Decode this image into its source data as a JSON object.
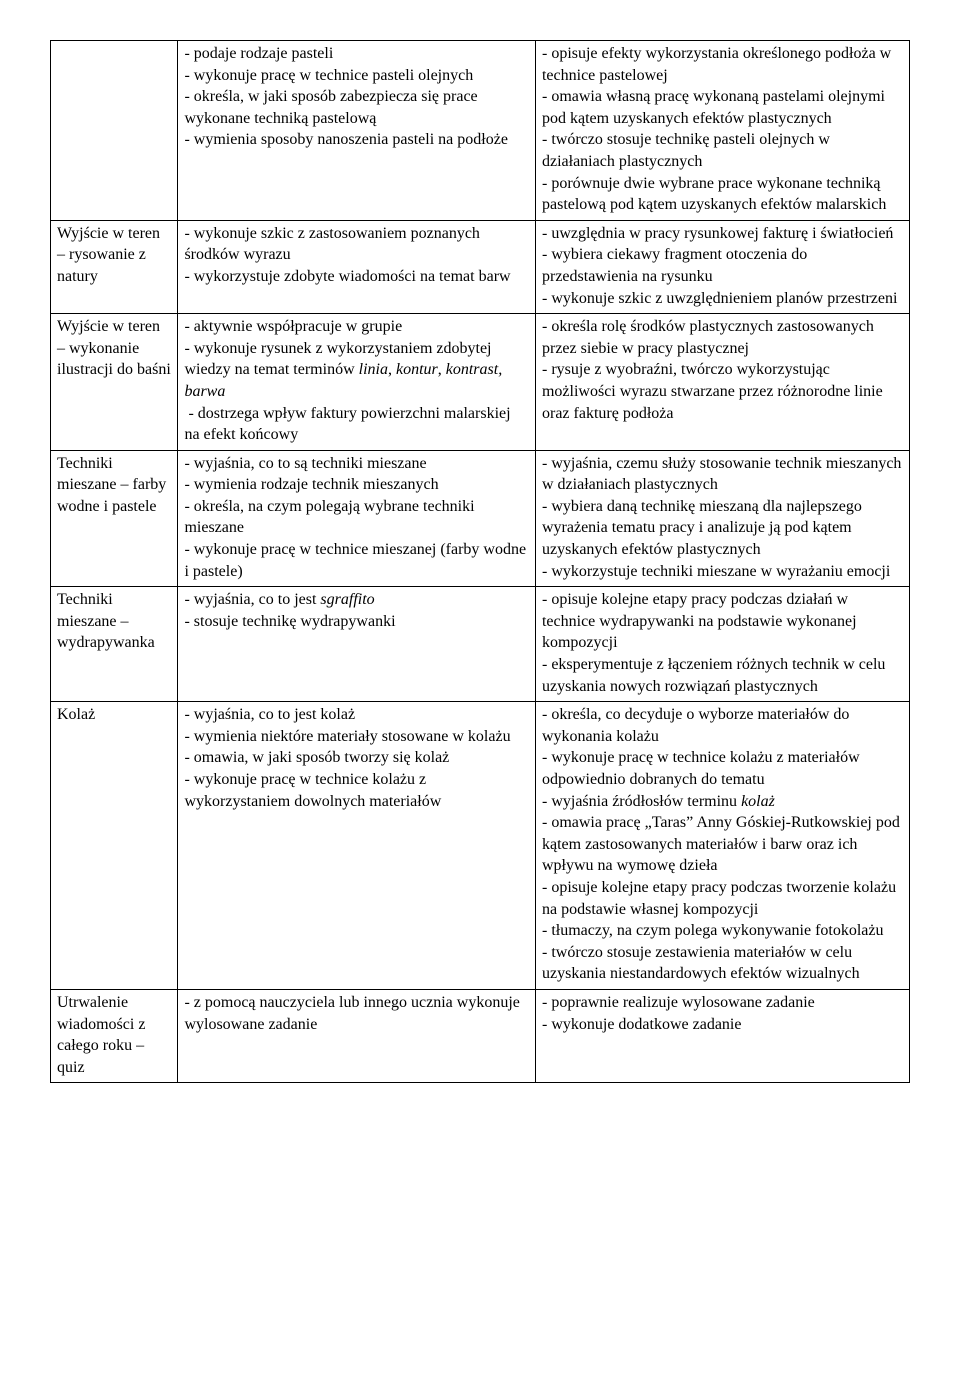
{
  "table": {
    "columns": [
      "topic",
      "basic",
      "extended"
    ],
    "col_widths_pct": [
      14,
      42,
      44
    ],
    "border_color": "#000000",
    "background_color": "#ffffff",
    "font_family": "Times New Roman",
    "font_size_pt": 12,
    "rows": [
      {
        "topic": "",
        "basic": "- podaje rodzaje pasteli\n- wykonuje pracę w technice pasteli olejnych\n- określa, w jaki sposób zabezpiecza się prace wykonane techniką pastelową\n- wymienia sposoby nanoszenia pasteli na podłoże",
        "extended": "- opisuje efekty wykorzystania określonego podłoża w technice pastelowej\n- omawia własną pracę wykonaną pastelami olejnymi pod kątem uzyskanych efektów plastycznych\n- twórczo stosuje technikę pasteli olejnych w działaniach plastycznych\n- porównuje dwie wybrane prace wykonane techniką pastelową pod kątem uzyskanych efektów malarskich"
      },
      {
        "topic": "Wyjście w teren – rysowanie z natury",
        "basic": "- wykonuje szkic z zastosowaniem poznanych środków wyrazu\n- wykorzystuje zdobyte wiadomości na temat barw",
        "extended": "- uwzględnia w pracy rysunkowej fakturę i światłocień\n- wybiera ciekawy fragment otoczenia do przedstawienia na rysunku\n- wykonuje szkic z uwzględnieniem planów przestrzeni"
      },
      {
        "topic": "Wyjście w teren – wykonanie ilustracji do baśni",
        "basic_html": "- aktywnie współpracuje w grupie<br>- wykonuje rysunek z wykorzystaniem zdobytej wiedzy na temat terminów <span class=\"it\">linia</span>, <span class=\"it\">kontur</span>, <span class=\"it\">kontrast, barwa</span><br>&nbsp;- dostrzega wpływ faktury powierzchni malarskiej na efekt końcowy",
        "extended": "- określa rolę środków plastycznych zastosowanych przez siebie w pracy plastycznej\n- rysuje z wyobraźni, twórczo wykorzystując możliwości wyrazu stwarzane przez różnorodne linie oraz fakturę podłoża"
      },
      {
        "topic": "Techniki mieszane – farby wodne i pastele",
        "basic": "- wyjaśnia, co to są techniki mieszane\n- wymienia rodzaje technik mieszanych\n- określa, na czym polegają wybrane techniki mieszane\n- wykonuje pracę w technice mieszanej (farby wodne i pastele)",
        "extended": "- wyjaśnia, czemu służy stosowanie technik mieszanych w działaniach plastycznych\n- wybiera daną technikę mieszaną dla najlepszego wyrażenia tematu pracy i analizuje ją pod kątem uzyskanych efektów plastycznych\n- wykorzystuje techniki mieszane w wyrażaniu emocji"
      },
      {
        "topic": "Techniki mieszane – wydrapywanka",
        "basic_html": "- wyjaśnia, co to jest <span class=\"it\">sgraffito</span><br>- stosuje technikę wydrapywanki",
        "extended": "- opisuje kolejne etapy pracy podczas działań w technice wydrapywanki na podstawie wykonanej kompozycji\n- eksperymentuje z łączeniem różnych technik w celu uzyskania nowych rozwiązań plastycznych\n"
      },
      {
        "topic": "Kolaż",
        "basic": "- wyjaśnia, co to jest kolaż\n- wymienia niektóre materiały stosowane w kolażu\n- omawia, w jaki sposób tworzy się kolaż\n- wykonuje pracę w technice kolażu z wykorzystaniem dowolnych materiałów",
        "extended_html": "- określa, co decyduje o wyborze materiałów do wykonania kolażu<br>- wykonuje pracę w technice kolażu z materiałów odpowiednio dobranych do tematu<br>- wyjaśnia źródłosłów terminu <span class=\"it\">kolaż</span><br>- omawia pracę „Taras” Anny Góskiej-Rutkowskiej pod kątem zastosowanych materiałów i barw oraz ich wpływu na wymowę dzieła<br>- opisuje kolejne etapy pracy podczas tworzenie kolażu na podstawie własnej kompozycji<br>- tłumaczy, na czym polega wykonywanie fotokolażu<br>- twórczo stosuje zestawienia materiałów w celu uzyskania niestandardowych efektów wizualnych"
      },
      {
        "topic": "Utrwalenie wiadomości z całego roku – quiz",
        "basic": "- z pomocą nauczyciela lub innego ucznia wykonuje wylosowane zadanie",
        "extended": "- poprawnie realizuje wylosowane zadanie\n- wykonuje dodatkowe zadanie\n\n"
      }
    ]
  }
}
